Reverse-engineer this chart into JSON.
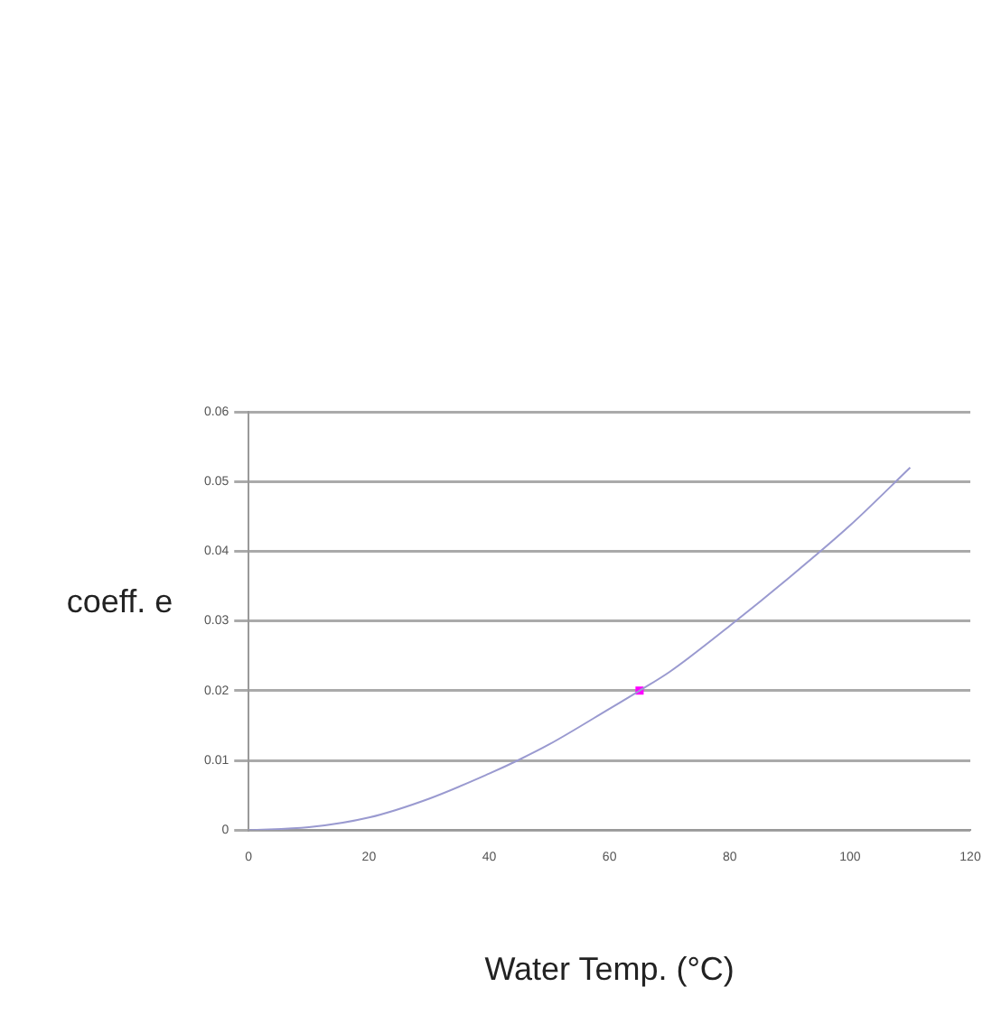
{
  "chart_data": {
    "type": "line",
    "xlabel": "Water Temp. (°C)",
    "ylabel": "coeff. e",
    "xlim": [
      0,
      120
    ],
    "xticks": [
      0,
      20,
      40,
      60,
      80,
      100,
      120
    ],
    "ylim": [
      0,
      0.06
    ],
    "yticks": [
      0,
      0.01,
      0.02,
      0.03,
      0.04,
      0.05,
      0.06
    ],
    "grid": "y",
    "legend": false,
    "marker": "none",
    "series": [
      {
        "color": "#9a9ad0",
        "x": [
          0,
          10,
          20,
          30,
          40,
          45,
          50,
          60,
          65,
          70,
          80,
          90,
          100,
          110
        ],
        "values": [
          0,
          0.0004,
          0.0018,
          0.0045,
          0.0081,
          0.0101,
          0.0123,
          0.0174,
          0.02,
          0.0227,
          0.0293,
          0.0363,
          0.0437,
          0.052
        ]
      },
      {
        "type": "scatter",
        "color": "#ff00ff",
        "marker": "square",
        "x": [
          65
        ],
        "values": [
          0.02
        ]
      }
    ]
  }
}
